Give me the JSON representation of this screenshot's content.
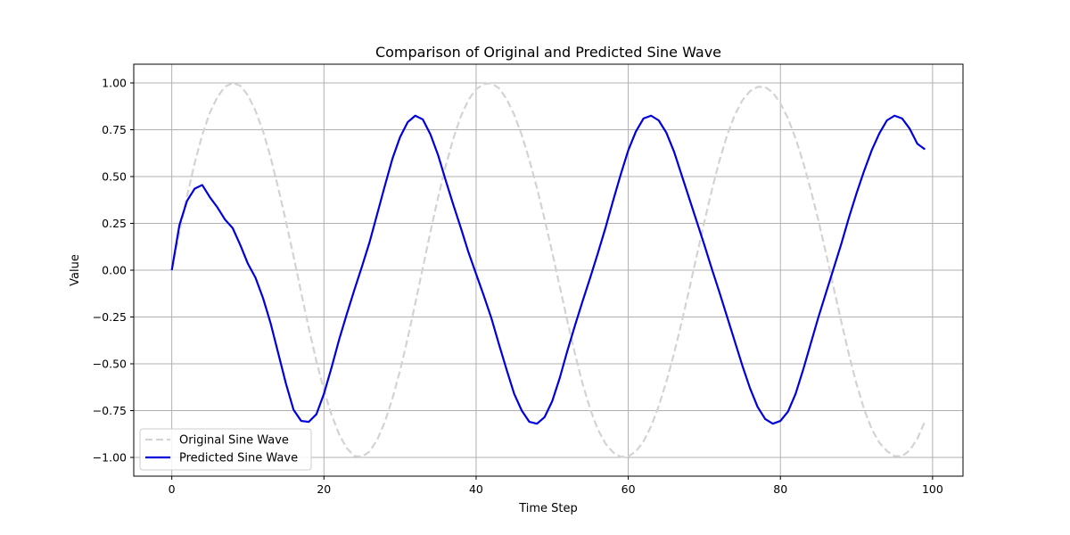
{
  "chart_data": {
    "type": "line",
    "title": "Comparison of Original and Predicted Sine Wave",
    "xlabel": "Time Step",
    "ylabel": "Value",
    "xlim": [
      -5,
      104
    ],
    "ylim": [
      -1.1,
      1.1
    ],
    "xticks": [
      0,
      20,
      40,
      60,
      80,
      100
    ],
    "yticks": [
      -1.0,
      -0.75,
      -0.5,
      -0.25,
      0.0,
      0.25,
      0.5,
      0.75,
      1.0
    ],
    "xtick_labels": [
      "0",
      "20",
      "40",
      "60",
      "80",
      "100"
    ],
    "ytick_labels": [
      "−1.00",
      "−0.75",
      "−0.50",
      "−0.25",
      "0.00",
      "0.25",
      "0.50",
      "0.75",
      "1.00"
    ],
    "grid": true,
    "legend_position": "lower-left",
    "series": [
      {
        "name": "Original Sine Wave",
        "color": "#d3d3d3",
        "style": "dashed",
        "x": [
          0,
          1,
          2,
          3,
          4,
          5,
          6,
          7,
          8,
          9,
          10,
          11,
          12,
          13,
          14,
          15,
          16,
          17,
          18,
          19,
          20,
          21,
          22,
          23,
          24,
          25,
          26,
          27,
          28,
          29,
          30,
          31,
          32,
          33,
          34,
          35,
          36,
          37,
          38,
          39,
          40,
          41,
          42,
          43,
          44,
          45,
          46,
          47,
          48,
          49,
          50,
          51,
          52,
          53,
          54,
          55,
          56,
          57,
          58,
          59,
          60,
          61,
          62,
          63,
          64,
          65,
          66,
          67,
          68,
          69,
          70,
          71,
          72,
          73,
          74,
          75,
          76,
          77,
          78,
          79,
          80,
          81,
          82,
          83,
          84,
          85,
          86,
          87,
          88,
          89,
          90,
          91,
          92,
          93,
          94,
          95,
          96,
          97,
          98,
          99
        ],
        "y": [
          0.0,
          0.202,
          0.395,
          0.571,
          0.722,
          0.841,
          0.925,
          0.98,
          1.0,
          0.985,
          0.935,
          0.852,
          0.741,
          0.601,
          0.438,
          0.261,
          0.075,
          -0.118,
          -0.308,
          -0.485,
          -0.641,
          -0.773,
          -0.877,
          -0.951,
          -0.992,
          -0.997,
          -0.968,
          -0.906,
          -0.811,
          -0.686,
          -0.536,
          -0.365,
          -0.178,
          0.014,
          0.205,
          0.388,
          0.556,
          0.702,
          0.822,
          0.91,
          0.966,
          0.994,
          0.999,
          0.972,
          0.915,
          0.831,
          0.722,
          0.589,
          0.438,
          0.273,
          0.096,
          -0.088,
          -0.272,
          -0.447,
          -0.606,
          -0.742,
          -0.85,
          -0.926,
          -0.973,
          -0.997,
          -0.995,
          -0.968,
          -0.915,
          -0.834,
          -0.727,
          -0.597,
          -0.448,
          -0.282,
          -0.105,
          0.077,
          0.258,
          0.43,
          0.587,
          0.721,
          0.829,
          0.907,
          0.956,
          0.979,
          0.978,
          0.949,
          0.892,
          0.81,
          0.703,
          0.575,
          0.427,
          0.264,
          0.089,
          -0.094,
          -0.275,
          -0.449,
          -0.607,
          -0.742,
          -0.848,
          -0.921,
          -0.966,
          -0.993,
          -0.994,
          -0.962,
          -0.9,
          -0.807
        ]
      },
      {
        "name": "Predicted Sine Wave",
        "color": "#0000dd",
        "style": "solid",
        "x": [
          0,
          1,
          2,
          3,
          4,
          5,
          6,
          7,
          8,
          9,
          10,
          11,
          12,
          13,
          14,
          15,
          16,
          17,
          18,
          19,
          20,
          21,
          22,
          23,
          24,
          25,
          26,
          27,
          28,
          29,
          30,
          31,
          32,
          33,
          34,
          35,
          36,
          37,
          38,
          39,
          40,
          41,
          42,
          43,
          44,
          45,
          46,
          47,
          48,
          49,
          50,
          51,
          52,
          53,
          54,
          55,
          56,
          57,
          58,
          59,
          60,
          61,
          62,
          63,
          64,
          65,
          66,
          67,
          68,
          69,
          70,
          71,
          72,
          73,
          74,
          75,
          76,
          77,
          78,
          79,
          80,
          81,
          82,
          83,
          84,
          85,
          86,
          87,
          88,
          89,
          90,
          91,
          92,
          93,
          94,
          95,
          96,
          97,
          98,
          99
        ],
        "y": [
          0.0,
          0.24,
          0.37,
          0.435,
          0.455,
          0.39,
          0.335,
          0.27,
          0.225,
          0.135,
          0.035,
          -0.04,
          -0.15,
          -0.285,
          -0.445,
          -0.605,
          -0.745,
          -0.805,
          -0.81,
          -0.77,
          -0.66,
          -0.52,
          -0.37,
          -0.235,
          -0.105,
          0.02,
          0.15,
          0.3,
          0.45,
          0.595,
          0.71,
          0.79,
          0.825,
          0.805,
          0.725,
          0.615,
          0.48,
          0.35,
          0.225,
          0.095,
          -0.02,
          -0.135,
          -0.255,
          -0.395,
          -0.53,
          -0.66,
          -0.75,
          -0.81,
          -0.82,
          -0.785,
          -0.7,
          -0.575,
          -0.43,
          -0.295,
          -0.165,
          -0.04,
          0.09,
          0.225,
          0.37,
          0.51,
          0.64,
          0.74,
          0.81,
          0.825,
          0.8,
          0.735,
          0.635,
          0.51,
          0.385,
          0.26,
          0.135,
          0.005,
          -0.12,
          -0.25,
          -0.38,
          -0.51,
          -0.63,
          -0.73,
          -0.795,
          -0.82,
          -0.805,
          -0.755,
          -0.66,
          -0.53,
          -0.39,
          -0.25,
          -0.12,
          0.01,
          0.14,
          0.28,
          0.41,
          0.53,
          0.64,
          0.73,
          0.8,
          0.825,
          0.81,
          0.755,
          0.675,
          0.645
        ]
      }
    ]
  }
}
